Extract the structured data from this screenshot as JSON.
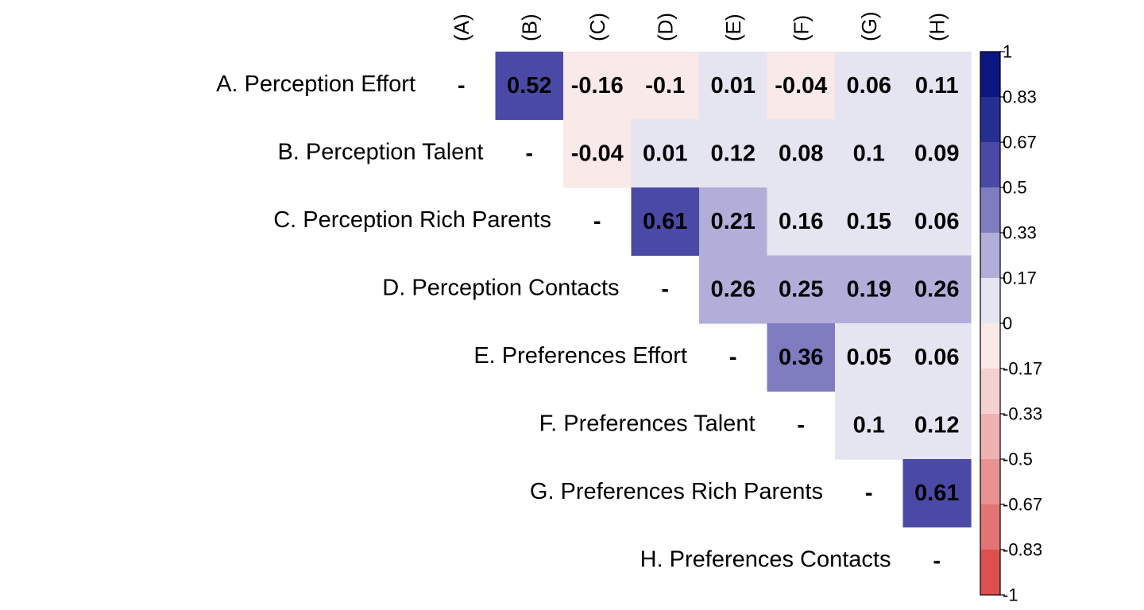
{
  "chart_data": {
    "type": "heatmap",
    "title": "",
    "variables": [
      "A. Perception Effort",
      "B. Perception Talent",
      "C. Perception Rich Parents",
      "D. Perception Contacts",
      "E. Preferences Effort",
      "F. Preferences Talent",
      "G. Preferences Rich Parents",
      "H. Preferences Contacts"
    ],
    "column_labels": [
      "(A)",
      "(B)",
      "(C)",
      "(D)",
      "(E)",
      "(F)",
      "(G)",
      "(H)"
    ],
    "diagonal_label": "-",
    "matrix": [
      [
        null,
        0.52,
        -0.16,
        -0.1,
        0.01,
        -0.04,
        0.06,
        0.11
      ],
      [
        null,
        null,
        -0.04,
        0.01,
        0.12,
        0.08,
        0.1,
        0.09
      ],
      [
        null,
        null,
        null,
        0.61,
        0.21,
        0.16,
        0.15,
        0.06
      ],
      [
        null,
        null,
        null,
        null,
        0.26,
        0.25,
        0.19,
        0.26
      ],
      [
        null,
        null,
        null,
        null,
        null,
        0.36,
        0.05,
        0.06
      ],
      [
        null,
        null,
        null,
        null,
        null,
        null,
        0.1,
        0.12
      ],
      [
        null,
        null,
        null,
        null,
        null,
        null,
        null,
        0.61
      ],
      [
        null,
        null,
        null,
        null,
        null,
        null,
        null,
        null
      ]
    ],
    "legend": {
      "range": [
        -1,
        1
      ],
      "tick_labels": [
        "1",
        "0.83",
        "0.67",
        "0.5",
        "0.33",
        "0.17",
        "0",
        "-0.17",
        "-0.33",
        "-0.5",
        "-0.67",
        "-0.83",
        "-1"
      ],
      "bins": [
        {
          "from": 0.83,
          "to": 1,
          "color": "#0d1680"
        },
        {
          "from": 0.67,
          "to": 0.83,
          "color": "#262f91"
        },
        {
          "from": 0.5,
          "to": 0.67,
          "color": "#4a4aa6"
        },
        {
          "from": 0.33,
          "to": 0.5,
          "color": "#7f7dc0"
        },
        {
          "from": 0.17,
          "to": 0.33,
          "color": "#b1afd9"
        },
        {
          "from": 0,
          "to": 0.17,
          "color": "#e5e4f1"
        },
        {
          "from": -0.17,
          "to": 0,
          "color": "#f9e9e8"
        },
        {
          "from": -0.33,
          "to": -0.17,
          "color": "#f5d0d0"
        },
        {
          "from": -0.5,
          "to": -0.33,
          "color": "#efb2b2"
        },
        {
          "from": -0.67,
          "to": -0.5,
          "color": "#e99292"
        },
        {
          "from": -0.83,
          "to": -0.67,
          "color": "#e27474"
        },
        {
          "from": -1,
          "to": -0.83,
          "color": "#dc5050"
        }
      ]
    }
  }
}
